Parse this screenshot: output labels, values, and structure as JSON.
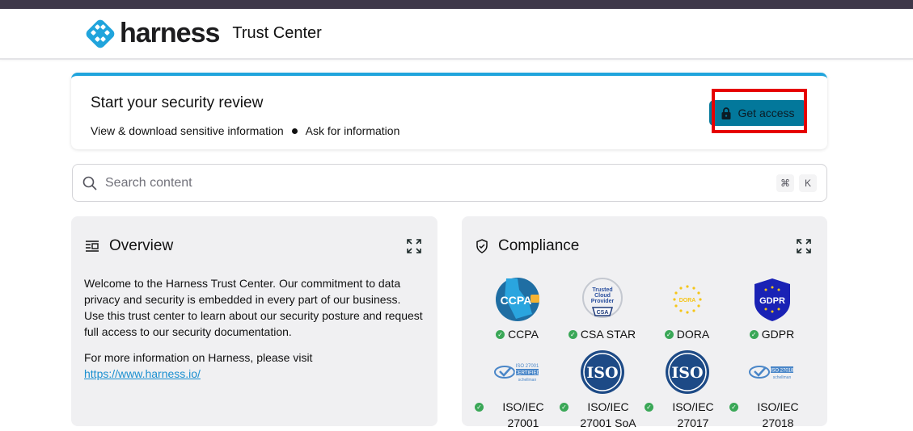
{
  "header": {
    "brand": "harness",
    "title": "Trust Center"
  },
  "banner": {
    "title": "Start your security review",
    "items": [
      "View & download sensitive information",
      "Ask for information"
    ],
    "button_label": "Get access"
  },
  "search": {
    "placeholder": "Search content",
    "shortcut": [
      "⌘",
      "K"
    ]
  },
  "overview": {
    "title": "Overview",
    "paragraph1": "Welcome to the Harness Trust Center. Our commitment to data privacy and security is embedded in every part of our business. Use this trust center to learn about our security posture and request full access to our security documentation.",
    "paragraph2": "For more information on Harness, please visit",
    "link": "https://www.harness.io/"
  },
  "compliance": {
    "title": "Compliance",
    "items": [
      {
        "label": "CCPA",
        "badge": "CCPA"
      },
      {
        "label": "CSA STAR",
        "badge": "CSA"
      },
      {
        "label": "DORA",
        "badge": "DORA"
      },
      {
        "label": "GDPR",
        "badge": "GDPR"
      },
      {
        "label": "ISO/IEC 27001",
        "badge": "ISO 27001 CERTIFIED"
      },
      {
        "label": "ISO/IEC 27001 SoA",
        "badge": "ISO"
      },
      {
        "label": "ISO/IEC 27017",
        "badge": "ISO"
      },
      {
        "label": "ISO/IEC 27018",
        "badge": "ISO 27018"
      }
    ]
  },
  "colors": {
    "accent": "#20a4dc",
    "button": "#03789b",
    "status_ok": "#3aa757"
  }
}
